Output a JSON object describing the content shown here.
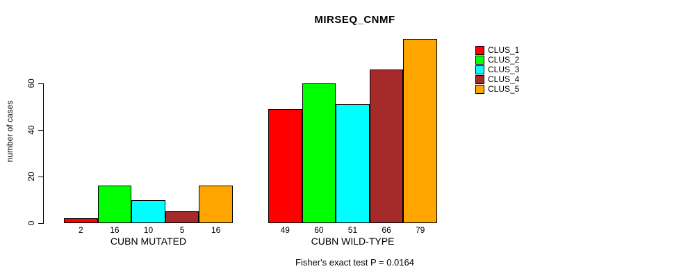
{
  "title": "MIRSEQ_CNMF",
  "annotation": "Fisher's exact test P = 0.0164",
  "colors": {
    "background": "#FFFFFF",
    "axis": "#000000",
    "text": "#000000"
  },
  "chart_data": {
    "type": "bar",
    "title": "MIRSEQ_CNMF",
    "xlabel": "",
    "ylabel": "number of cases",
    "yticks": [
      0,
      20,
      40,
      60
    ],
    "ylim": [
      0,
      79
    ],
    "grid": false,
    "legend_position": "right",
    "bar_value_labels": true,
    "series": [
      {
        "name": "CLUS_1",
        "color": "#FF0000"
      },
      {
        "name": "CLUS_2",
        "color": "#00FF00"
      },
      {
        "name": "CLUS_3",
        "color": "#00FFFF"
      },
      {
        "name": "CLUS_4",
        "color": "#A52A2A"
      },
      {
        "name": "CLUS_5",
        "color": "#FFA500"
      }
    ],
    "groups": [
      {
        "label": "CUBN MUTATED",
        "values": [
          2,
          16,
          10,
          5,
          16
        ]
      },
      {
        "label": "CUBN WILD-TYPE",
        "values": [
          49,
          60,
          51,
          66,
          79
        ]
      }
    ],
    "annotation": "Fisher's exact test P = 0.0164"
  }
}
